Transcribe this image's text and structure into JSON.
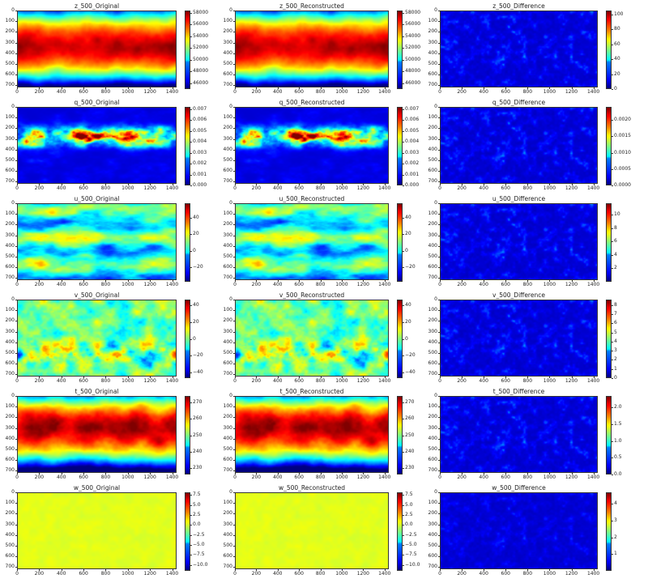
{
  "chart_data": {
    "type": "heatmap",
    "colormap": "jet",
    "x_ticks": [
      0,
      200,
      400,
      600,
      800,
      1000,
      1200,
      1400
    ],
    "y_ticks": [
      0,
      100,
      200,
      300,
      400,
      500,
      600,
      700
    ],
    "xlim": [
      0,
      1440
    ],
    "ylim": [
      721,
      0
    ],
    "rows": [
      {
        "var": "z",
        "panels": [
          {
            "title": "z_500_Original",
            "vmin": 45000,
            "vmax": 58400,
            "cbar_ticks": [
              "46000",
              "48000",
              "50000",
              "52000",
              "54000",
              "56000",
              "58000"
            ],
            "cbar_values": [
              46000,
              48000,
              50000,
              52000,
              54000,
              56000,
              58000
            ]
          },
          {
            "title": "z_500_Reconstructed",
            "vmin": 45000,
            "vmax": 58400,
            "cbar_ticks": [
              "46000",
              "48000",
              "50000",
              "52000",
              "54000",
              "56000",
              "58000"
            ],
            "cbar_values": [
              46000,
              48000,
              50000,
              52000,
              54000,
              56000,
              58000
            ]
          },
          {
            "title": "z_500_Difference",
            "vmin": 0,
            "vmax": 105,
            "cbar_ticks": [
              "0",
              "20",
              "40",
              "60",
              "80",
              "100"
            ],
            "cbar_values": [
              0,
              20,
              40,
              60,
              80,
              100
            ]
          }
        ]
      },
      {
        "var": "q",
        "panels": [
          {
            "title": "q_500_Original",
            "vmin": 0,
            "vmax": 0.0072,
            "cbar_ticks": [
              "0.000",
              "0.001",
              "0.002",
              "0.003",
              "0.004",
              "0.005",
              "0.006",
              "0.007"
            ],
            "cbar_values": [
              0,
              0.001,
              0.002,
              0.003,
              0.004,
              0.005,
              0.006,
              0.007
            ]
          },
          {
            "title": "q_500_Reconstructed",
            "vmin": 0,
            "vmax": 0.0072,
            "cbar_ticks": [
              "0.000",
              "0.001",
              "0.002",
              "0.003",
              "0.004",
              "0.005",
              "0.006",
              "0.007"
            ],
            "cbar_values": [
              0,
              0.001,
              0.002,
              0.003,
              0.004,
              0.005,
              0.006,
              0.007
            ]
          },
          {
            "title": "q_500_Difference",
            "vmin": 0,
            "vmax": 0.0024,
            "cbar_ticks": [
              "0.0000",
              "0.0005",
              "0.0010",
              "0.0015",
              "0.0020"
            ],
            "cbar_values": [
              0,
              0.0005,
              0.001,
              0.0015,
              0.002
            ]
          }
        ]
      },
      {
        "var": "u",
        "panels": [
          {
            "title": "u_500_Original",
            "vmin": -38,
            "vmax": 58,
            "cbar_ticks": [
              "−20",
              "0",
              "20",
              "40"
            ],
            "cbar_values": [
              -20,
              0,
              20,
              40
            ]
          },
          {
            "title": "u_500_Reconstructed",
            "vmin": -38,
            "vmax": 58,
            "cbar_ticks": [
              "−20",
              "0",
              "20",
              "40"
            ],
            "cbar_values": [
              -20,
              0,
              20,
              40
            ]
          },
          {
            "title": "u_500_Difference",
            "vmin": 0,
            "vmax": 11.7,
            "cbar_ticks": [
              "2",
              "4",
              "6",
              "8",
              "10"
            ],
            "cbar_values": [
              2,
              4,
              6,
              8,
              10
            ]
          }
        ]
      },
      {
        "var": "v",
        "panels": [
          {
            "title": "v_500_Original",
            "vmin": -47,
            "vmax": 47,
            "cbar_ticks": [
              "−40",
              "−20",
              "0",
              "20",
              "40"
            ],
            "cbar_values": [
              -40,
              -20,
              0,
              20,
              40
            ]
          },
          {
            "title": "v_500_Reconstructed",
            "vmin": -47,
            "vmax": 47,
            "cbar_ticks": [
              "−40",
              "−20",
              "0",
              "20",
              "40"
            ],
            "cbar_values": [
              -40,
              -20,
              0,
              20,
              40
            ]
          },
          {
            "title": "v_500_Difference",
            "vmin": 0,
            "vmax": 8.6,
            "cbar_ticks": [
              "0",
              "1",
              "2",
              "3",
              "4",
              "5",
              "6",
              "7",
              "8"
            ],
            "cbar_values": [
              0,
              1,
              2,
              3,
              4,
              5,
              6,
              7,
              8
            ]
          }
        ]
      },
      {
        "var": "t",
        "panels": [
          {
            "title": "t_500_Original",
            "vmin": 226,
            "vmax": 274,
            "cbar_ticks": [
              "230",
              "240",
              "250",
              "260",
              "270"
            ],
            "cbar_values": [
              230,
              240,
              250,
              260,
              270
            ]
          },
          {
            "title": "t_500_Reconstructed",
            "vmin": 226,
            "vmax": 274,
            "cbar_ticks": [
              "230",
              "240",
              "250",
              "260",
              "270"
            ],
            "cbar_values": [
              230,
              240,
              250,
              260,
              270
            ]
          },
          {
            "title": "t_500_Difference",
            "vmin": 0,
            "vmax": 2.35,
            "cbar_ticks": [
              "0.0",
              "0.5",
              "1.0",
              "1.5",
              "2.0"
            ],
            "cbar_values": [
              0,
              0.5,
              1,
              1.5,
              2
            ]
          }
        ]
      },
      {
        "var": "w",
        "panels": [
          {
            "title": "w_500_Original",
            "vmin": -11.5,
            "vmax": 8.2,
            "cbar_ticks": [
              "−10.0",
              "−7.5",
              "−5.0",
              "−2.5",
              "0.0",
              "2.5",
              "5.0",
              "7.5"
            ],
            "cbar_values": [
              -10,
              -7.5,
              -5,
              -2.5,
              0,
              2.5,
              5,
              7.5
            ]
          },
          {
            "title": "w_500_Reconstructed",
            "vmin": -11.5,
            "vmax": 8.2,
            "cbar_ticks": [
              "−10.0",
              "−7.5",
              "−5.0",
              "−2.5",
              "0.0",
              "2.5",
              "5.0",
              "7.5"
            ],
            "cbar_values": [
              -10,
              -7.5,
              -5,
              -2.5,
              0,
              2.5,
              5,
              7.5
            ]
          },
          {
            "title": "w_500_Difference",
            "vmin": 0,
            "vmax": 4.7,
            "cbar_ticks": [
              "1",
              "2",
              "3",
              "4"
            ],
            "cbar_values": [
              1,
              2,
              3,
              4
            ]
          }
        ]
      }
    ]
  }
}
